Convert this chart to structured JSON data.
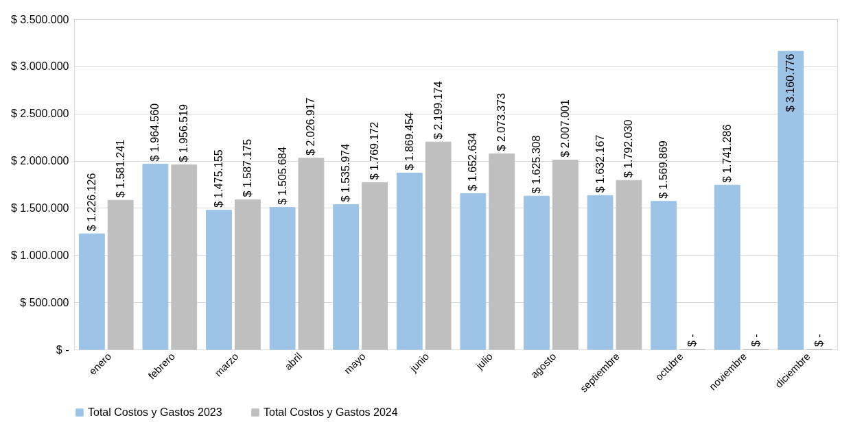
{
  "chart_data": {
    "type": "bar",
    "categories": [
      "enero",
      "febrero",
      "marzo",
      "abril",
      "mayo",
      "junio",
      "julio",
      "agosto",
      "septiembre",
      "octubre",
      "noviembre",
      "diciembre"
    ],
    "series": [
      {
        "name": "Total Costos y Gastos 2023",
        "color": "#9dc3e6",
        "values": [
          1226126,
          1964560,
          1475155,
          1505684,
          1535974,
          1869454,
          1652634,
          1625308,
          1632167,
          1569869,
          1741286,
          3160776
        ],
        "value_labels": [
          "$ 1.226.126",
          "$ 1.964.560",
          "$ 1.475.155",
          "$ 1.505.684",
          "$ 1.535.974",
          "$ 1.869.454",
          "$ 1.652.634",
          "$ 1.625.308",
          "$ 1.632.167",
          "$ 1.569.869",
          "$ 1.741.286",
          "$ 3.160.776"
        ]
      },
      {
        "name": "Total Costos y Gastos 2024",
        "color": "#bfbfbf",
        "values": [
          1581241,
          1956519,
          1587175,
          2026917,
          1769172,
          2199174,
          2073373,
          2007001,
          1792030,
          0,
          0,
          0
        ],
        "value_labels": [
          "$ 1.581.241",
          "$ 1.956.519",
          "$ 1.587.175",
          "$ 2.026.917",
          "$ 1.769.172",
          "$ 2.199.174",
          "$ 2.073.373",
          "$ 2.007.001",
          "$ 1.792.030",
          "$ -",
          "$ -",
          "$ -"
        ]
      }
    ],
    "ylim": [
      0,
      3500000
    ],
    "yticks": [
      {
        "value": 0,
        "label": "$ -"
      },
      {
        "value": 500000,
        "label": "$ 500.000"
      },
      {
        "value": 1000000,
        "label": "$ 1.000.000"
      },
      {
        "value": 1500000,
        "label": "$ 1.500.000"
      },
      {
        "value": 2000000,
        "label": "$ 2.000.000"
      },
      {
        "value": 2500000,
        "label": "$ 2.500.000"
      },
      {
        "value": 3000000,
        "label": "$ 3.000.000"
      },
      {
        "value": 3500000,
        "label": "$ 3.500.000"
      }
    ],
    "grid": "y",
    "legend": "bottom"
  }
}
